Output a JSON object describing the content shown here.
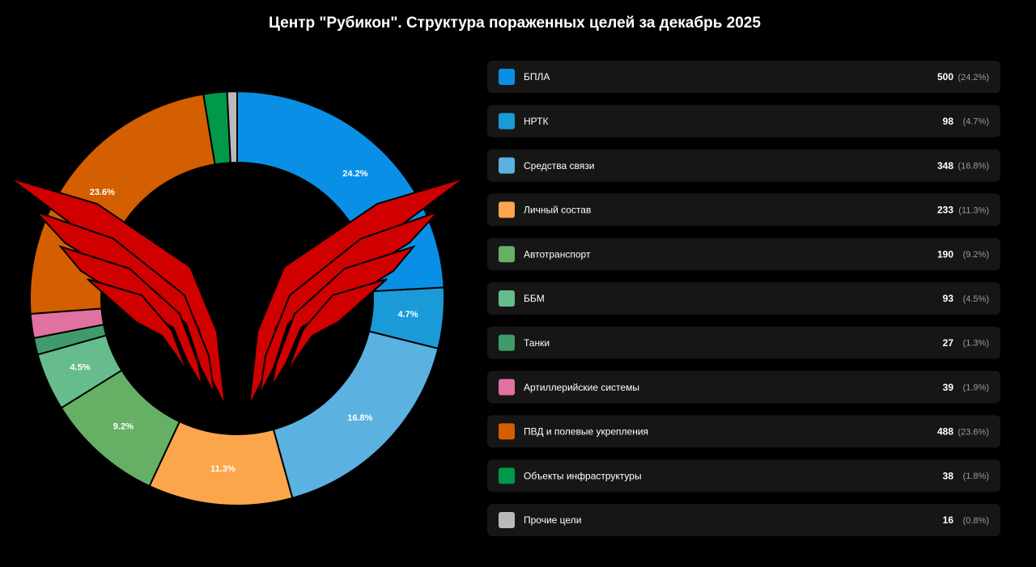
{
  "chart_data": {
    "type": "donut",
    "title": "Центр \"Рубикон\". Структура пораженных целей за декабрь 2025",
    "categories": [
      "БПЛА",
      "НРТК",
      "Средства связи",
      "Личный состав",
      "Автотранспорт",
      "ББМ",
      "Танки",
      "Артиллерийские системы",
      "ПВД и полевые укрепления",
      "Объекты инфраструктуры",
      "Прочие цели"
    ],
    "values": [
      500,
      98,
      348,
      233,
      190,
      93,
      27,
      39,
      488,
      38,
      16
    ],
    "share_labels": [
      "24.2%",
      "4.7%",
      "16.8%",
      "11.3%",
      "9.2%",
      "4.5%",
      null,
      null,
      "23.6%",
      null,
      null
    ],
    "legend_share_labels": [
      "(24.2%)",
      "(4.7%)",
      "(16.8%)",
      "(11.3%)",
      "(9.2%)",
      "(4.5%)",
      "(1.3%)",
      "(1.9%)",
      "(23.6%)",
      "(1.8%)",
      "(0.8%)"
    ],
    "colors": [
      "#0a8fe6",
      "#1a9bd8",
      "#5bb1e0",
      "#fca64b",
      "#66b065",
      "#66bc8c",
      "#3f9b6c",
      "#e071a1",
      "#d35f00",
      "#00994a",
      "#b9b9b9"
    ]
  }
}
